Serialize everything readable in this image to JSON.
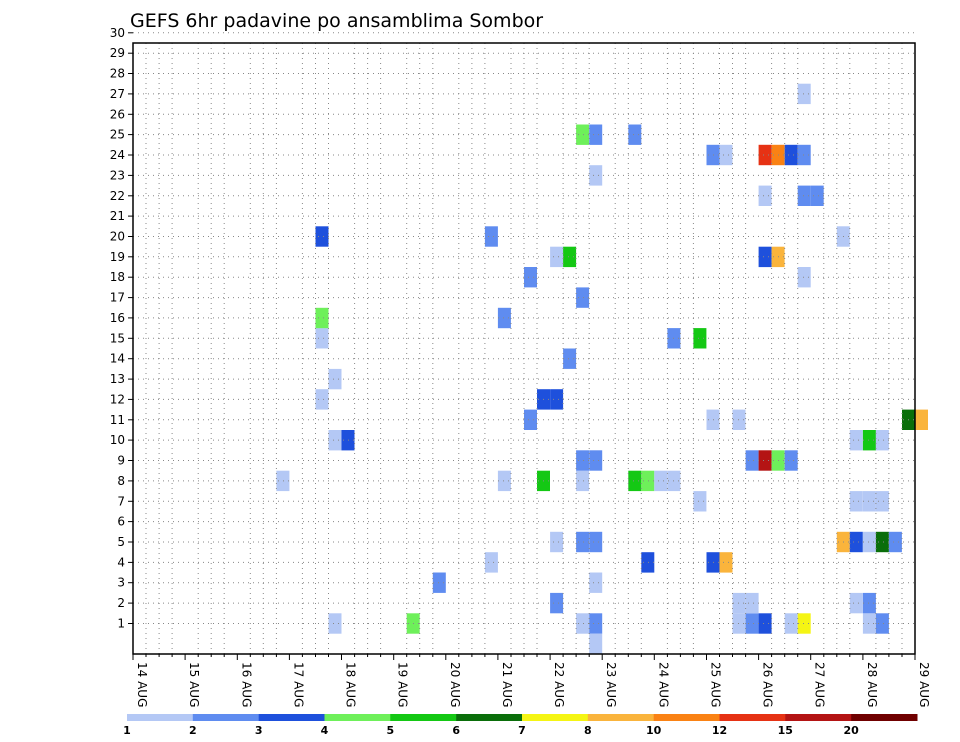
{
  "chart_data": {
    "type": "heatmap",
    "title": "GEFS 6hr padavine po ansamblima Sombor",
    "xlabel": "",
    "ylabel": "",
    "x_ticks": [
      "14 AUG",
      "15 AUG",
      "16 AUG",
      "17 AUG",
      "18 AUG",
      "19 AUG",
      "20 AUG",
      "21 AUG",
      "22 AUG",
      "23 AUG",
      "24 AUG",
      "25 AUG",
      "26 AUG",
      "27 AUG",
      "28 AUG",
      "29 AUG"
    ],
    "y_ticks": [
      "1",
      "2",
      "3",
      "4",
      "5",
      "6",
      "7",
      "8",
      "9",
      "10",
      "11",
      "12",
      "13",
      "14",
      "15",
      "16",
      "17",
      "18",
      "19",
      "20",
      "21",
      "22",
      "23",
      "24",
      "25",
      "26",
      "27",
      "28",
      "29",
      "30"
    ],
    "xlim": [
      "14 AUG 00Z",
      "29 AUG 00Z"
    ],
    "ylim": [
      0,
      30
    ],
    "x_unit": "days since 14 AUG, 6-hour steps",
    "grid": true,
    "legend": {
      "placement": "bottom",
      "thresholds": [
        "1",
        "2",
        "3",
        "4",
        "5",
        "6",
        "7",
        "8",
        "10",
        "12",
        "15",
        "20"
      ],
      "colors": [
        "#b4c8f5",
        "#5f8cf0",
        "#1e50dc",
        "#6ef05a",
        "#14c814",
        "#0a6e0a",
        "#f5f514",
        "#fab43c",
        "#fa8214",
        "#e63214",
        "#b41414",
        "#700000"
      ]
    },
    "cells": [
      {
        "x": 3.75,
        "y": 1,
        "c": 0
      },
      {
        "x": 5.25,
        "y": 1,
        "c": 3
      },
      {
        "x": 8.5,
        "y": 1,
        "c": 0
      },
      {
        "x": 8.75,
        "y": 1,
        "c": 1
      },
      {
        "x": 11.5,
        "y": 1,
        "c": 0
      },
      {
        "x": 11.75,
        "y": 1,
        "c": 1
      },
      {
        "x": 12.0,
        "y": 1,
        "c": 2
      },
      {
        "x": 12.5,
        "y": 1,
        "c": 0
      },
      {
        "x": 12.75,
        "y": 1,
        "c": 6
      },
      {
        "x": 14.0,
        "y": 1,
        "c": 0
      },
      {
        "x": 14.25,
        "y": 1,
        "c": 1
      },
      {
        "x": 8.0,
        "y": 2,
        "c": 1
      },
      {
        "x": 11.5,
        "y": 2,
        "c": 0
      },
      {
        "x": 11.75,
        "y": 2,
        "c": 0
      },
      {
        "x": 13.75,
        "y": 2,
        "c": 0
      },
      {
        "x": 14.0,
        "y": 2,
        "c": 1
      },
      {
        "x": 5.75,
        "y": 3,
        "c": 1
      },
      {
        "x": 8.75,
        "y": 3,
        "c": 0
      },
      {
        "x": 6.75,
        "y": 4,
        "c": 0
      },
      {
        "x": 9.75,
        "y": 4,
        "c": 2
      },
      {
        "x": 11.0,
        "y": 4,
        "c": 2
      },
      {
        "x": 11.25,
        "y": 4,
        "c": 7
      },
      {
        "x": 8.0,
        "y": 5,
        "c": 0
      },
      {
        "x": 8.5,
        "y": 5,
        "c": 1
      },
      {
        "x": 8.75,
        "y": 5,
        "c": 1
      },
      {
        "x": 13.5,
        "y": 5,
        "c": 7
      },
      {
        "x": 13.75,
        "y": 5,
        "c": 2
      },
      {
        "x": 14.0,
        "y": 5,
        "c": 0
      },
      {
        "x": 14.25,
        "y": 5,
        "c": 5
      },
      {
        "x": 14.5,
        "y": 5,
        "c": 1
      },
      {
        "x": 13.75,
        "y": 7,
        "c": 0
      },
      {
        "x": 14.0,
        "y": 7,
        "c": 0
      },
      {
        "x": 14.25,
        "y": 7,
        "c": 0
      },
      {
        "x": 10.75,
        "y": 7,
        "c": 0
      },
      {
        "x": 2.75,
        "y": 8,
        "c": 0
      },
      {
        "x": 7.0,
        "y": 8,
        "c": 0
      },
      {
        "x": 7.75,
        "y": 8,
        "c": 4
      },
      {
        "x": 8.5,
        "y": 8,
        "c": 0
      },
      {
        "x": 9.5,
        "y": 8,
        "c": 4
      },
      {
        "x": 9.75,
        "y": 8,
        "c": 3
      },
      {
        "x": 10.0,
        "y": 8,
        "c": 0
      },
      {
        "x": 10.25,
        "y": 8,
        "c": 0
      },
      {
        "x": 8.5,
        "y": 9,
        "c": 1
      },
      {
        "x": 8.75,
        "y": 9,
        "c": 1
      },
      {
        "x": 11.75,
        "y": 9,
        "c": 1
      },
      {
        "x": 12.0,
        "y": 9,
        "c": 10
      },
      {
        "x": 12.25,
        "y": 9,
        "c": 3
      },
      {
        "x": 12.5,
        "y": 9,
        "c": 1
      },
      {
        "x": 3.75,
        "y": 10,
        "c": 0
      },
      {
        "x": 4.0,
        "y": 10,
        "c": 2
      },
      {
        "x": 13.75,
        "y": 10,
        "c": 0
      },
      {
        "x": 14.0,
        "y": 10,
        "c": 4
      },
      {
        "x": 14.25,
        "y": 10,
        "c": 0
      },
      {
        "x": 7.5,
        "y": 11,
        "c": 1
      },
      {
        "x": 11.0,
        "y": 11,
        "c": 0
      },
      {
        "x": 11.5,
        "y": 11,
        "c": 0
      },
      {
        "x": 14.75,
        "y": 11,
        "c": 5
      },
      {
        "x": 15.0,
        "y": 11,
        "c": 7
      },
      {
        "x": 3.5,
        "y": 12,
        "c": 0
      },
      {
        "x": 7.75,
        "y": 12,
        "c": 2
      },
      {
        "x": 8.0,
        "y": 12,
        "c": 2
      },
      {
        "x": 3.75,
        "y": 13,
        "c": 0
      },
      {
        "x": 8.25,
        "y": 14,
        "c": 1
      },
      {
        "x": 3.5,
        "y": 15,
        "c": 0
      },
      {
        "x": 10.25,
        "y": 15,
        "c": 1
      },
      {
        "x": 10.75,
        "y": 15,
        "c": 4
      },
      {
        "x": 3.5,
        "y": 16,
        "c": 3
      },
      {
        "x": 7.0,
        "y": 16,
        "c": 1
      },
      {
        "x": 8.5,
        "y": 17,
        "c": 1
      },
      {
        "x": 7.5,
        "y": 18,
        "c": 1
      },
      {
        "x": 12.75,
        "y": 18,
        "c": 0
      },
      {
        "x": 8.0,
        "y": 19,
        "c": 0
      },
      {
        "x": 8.25,
        "y": 19,
        "c": 4
      },
      {
        "x": 12.0,
        "y": 19,
        "c": 2
      },
      {
        "x": 12.25,
        "y": 19,
        "c": 7
      },
      {
        "x": 3.5,
        "y": 20,
        "c": 2
      },
      {
        "x": 6.75,
        "y": 20,
        "c": 1
      },
      {
        "x": 13.5,
        "y": 20,
        "c": 0
      },
      {
        "x": 12.0,
        "y": 22,
        "c": 0
      },
      {
        "x": 12.75,
        "y": 22,
        "c": 1
      },
      {
        "x": 13.0,
        "y": 22,
        "c": 1
      },
      {
        "x": 8.75,
        "y": 23,
        "c": 0
      },
      {
        "x": 11.0,
        "y": 24,
        "c": 1
      },
      {
        "x": 11.25,
        "y": 24,
        "c": 0
      },
      {
        "x": 12.0,
        "y": 24,
        "c": 9
      },
      {
        "x": 12.25,
        "y": 24,
        "c": 8
      },
      {
        "x": 12.5,
        "y": 24,
        "c": 2
      },
      {
        "x": 12.75,
        "y": 24,
        "c": 1
      },
      {
        "x": 8.5,
        "y": 25,
        "c": 3
      },
      {
        "x": 8.75,
        "y": 25,
        "c": 1
      },
      {
        "x": 9.5,
        "y": 25,
        "c": 1
      },
      {
        "x": 12.75,
        "y": 27,
        "c": 0
      },
      {
        "x": 8.75,
        "y": 0,
        "c": 0
      }
    ]
  }
}
